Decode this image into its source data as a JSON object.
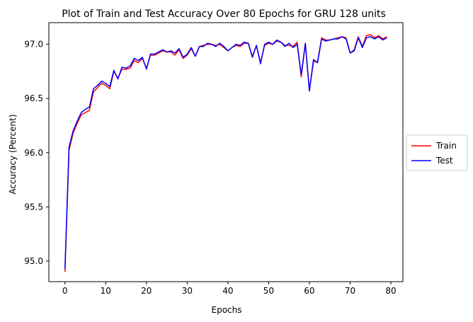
{
  "chart_data": {
    "type": "line",
    "title": "Plot of Train and Test Accuracy Over 80 Epochs for GRU 128 units",
    "xlabel": "Epochs",
    "ylabel": "Accuracy (Percent)",
    "xlim": [
      -3.95,
      82.95
    ],
    "ylim": [
      94.81,
      97.2
    ],
    "xticks": [
      0,
      10,
      20,
      30,
      40,
      50,
      60,
      70,
      80
    ],
    "yticks": [
      95.0,
      95.5,
      96.0,
      96.5,
      97.0
    ],
    "ytick_labels": [
      "95.0",
      "95.5",
      "96.0",
      "96.5",
      "97.0"
    ],
    "grid": false,
    "legend_placement": "center-right-outside",
    "x": [
      0,
      1,
      2,
      3,
      4,
      5,
      6,
      7,
      8,
      9,
      10,
      11,
      12,
      13,
      14,
      15,
      16,
      17,
      18,
      19,
      20,
      21,
      22,
      23,
      24,
      25,
      26,
      27,
      28,
      29,
      30,
      31,
      32,
      33,
      34,
      35,
      36,
      37,
      38,
      39,
      40,
      41,
      42,
      43,
      44,
      45,
      46,
      47,
      48,
      49,
      50,
      51,
      52,
      53,
      54,
      55,
      56,
      57,
      58,
      59,
      60,
      61,
      62,
      63,
      64,
      65,
      66,
      67,
      68,
      69,
      70,
      71,
      72,
      73,
      74,
      75,
      76,
      77,
      78,
      79
    ],
    "series": [
      {
        "name": "Train",
        "color": "#ff0000",
        "values": [
          94.9,
          96.02,
          96.18,
          96.27,
          96.35,
          96.37,
          96.39,
          96.56,
          96.6,
          96.64,
          96.62,
          96.59,
          96.75,
          96.69,
          96.77,
          96.77,
          96.78,
          96.85,
          96.83,
          96.87,
          96.78,
          96.9,
          96.9,
          96.92,
          96.94,
          96.93,
          96.93,
          96.9,
          96.95,
          96.87,
          96.9,
          96.96,
          96.89,
          96.98,
          96.99,
          97.0,
          97.0,
          96.99,
          97.0,
          96.97,
          96.94,
          96.97,
          96.99,
          96.98,
          97.01,
          97.01,
          96.89,
          96.99,
          96.83,
          96.99,
          97.01,
          97.0,
          97.03,
          97.02,
          96.99,
          96.99,
          96.98,
          97.02,
          96.7,
          97.01,
          96.57,
          96.84,
          96.84,
          97.06,
          97.04,
          97.04,
          97.05,
          97.06,
          97.07,
          97.06,
          96.92,
          96.95,
          97.07,
          96.98,
          97.08,
          97.09,
          97.06,
          97.08,
          97.05,
          97.07
        ]
      },
      {
        "name": "Test",
        "color": "#0000ff",
        "values": [
          94.93,
          96.05,
          96.2,
          96.29,
          96.37,
          96.4,
          96.42,
          96.59,
          96.62,
          96.66,
          96.64,
          96.61,
          96.76,
          96.68,
          96.79,
          96.78,
          96.8,
          96.87,
          96.85,
          96.88,
          96.77,
          96.91,
          96.91,
          96.93,
          96.95,
          96.93,
          96.94,
          96.92,
          96.96,
          96.88,
          96.91,
          96.97,
          96.89,
          96.98,
          96.98,
          97.01,
          97.0,
          96.98,
          97.01,
          96.98,
          96.94,
          96.97,
          97.0,
          96.99,
          97.02,
          97.01,
          96.88,
          96.99,
          96.82,
          97.0,
          97.02,
          97.0,
          97.04,
          97.02,
          96.98,
          97.01,
          96.97,
          97.0,
          96.72,
          97.01,
          96.57,
          96.86,
          96.83,
          97.05,
          97.03,
          97.04,
          97.05,
          97.05,
          97.07,
          97.05,
          96.92,
          96.94,
          97.06,
          96.97,
          97.06,
          97.07,
          97.05,
          97.07,
          97.04,
          97.06
        ]
      }
    ]
  }
}
